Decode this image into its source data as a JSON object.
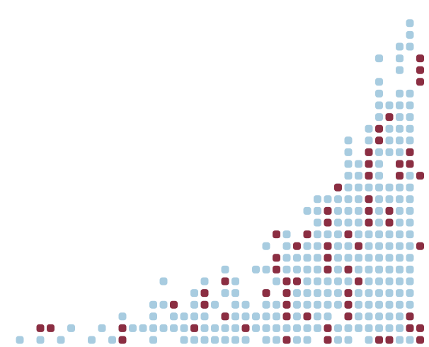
{
  "chart_data": {
    "type": "scatter",
    "title": "",
    "xlabel": "",
    "ylabel": "",
    "grid": false,
    "legend": "none",
    "axes_visible": false,
    "x_range": [
      0,
      39
    ],
    "y_range": [
      0,
      29
    ],
    "series": [
      {
        "color": "#a8cce0",
        "columns": [
          {
            "x": 0,
            "y": [
              0
            ]
          },
          {
            "x": 2,
            "y": [
              0
            ]
          },
          {
            "x": 4,
            "y": [
              0
            ]
          },
          {
            "x": 5,
            "y": [
              1
            ]
          },
          {
            "x": 7,
            "y": [
              0
            ]
          },
          {
            "x": 8,
            "y": [
              1
            ]
          },
          {
            "x": 9,
            "y": [
              0
            ]
          },
          {
            "x": 10,
            "y": [
              1,
              2
            ]
          },
          {
            "x": 11,
            "y": [
              1
            ]
          },
          {
            "x": 12,
            "y": [
              1
            ]
          },
          {
            "x": 13,
            "y": [
              0,
              1,
              2,
              3
            ]
          },
          {
            "x": 14,
            "y": [
              1,
              3,
              5
            ]
          },
          {
            "x": 15,
            "y": [
              1,
              2
            ]
          },
          {
            "x": 16,
            "y": [
              0,
              1,
              2
            ]
          },
          {
            "x": 17,
            "y": [
              0,
              1,
              2,
              3,
              4
            ]
          },
          {
            "x": 18,
            "y": [
              0,
              1,
              2,
              3,
              4,
              5
            ]
          },
          {
            "x": 19,
            "y": [
              0,
              1,
              3
            ]
          },
          {
            "x": 20,
            "y": [
              0,
              1,
              2,
              4,
              5,
              6
            ]
          },
          {
            "x": 21,
            "y": [
              0,
              1,
              2,
              3,
              4,
              5
            ]
          },
          {
            "x": 22,
            "y": [
              0,
              2,
              3
            ]
          },
          {
            "x": 23,
            "y": [
              1,
              2,
              6
            ]
          },
          {
            "x": 24,
            "y": [
              0,
              1,
              2,
              3,
              4,
              6,
              8
            ]
          },
          {
            "x": 25,
            "y": [
              0,
              1,
              2,
              3,
              5
            ]
          },
          {
            "x": 26,
            "y": [
              0,
              1,
              4,
              5,
              6,
              7,
              8,
              9
            ]
          },
          {
            "x": 27,
            "y": [
              0,
              1,
              2,
              3,
              4,
              6,
              7
            ]
          },
          {
            "x": 28,
            "y": [
              0,
              1,
              2,
              3,
              4,
              5,
              6,
              7,
              8,
              11
            ]
          },
          {
            "x": 29,
            "y": [
              1,
              2,
              3,
              4,
              5,
              6,
              7,
              8,
              9,
              10,
              11,
              12
            ]
          },
          {
            "x": 30,
            "y": [
              0,
              2,
              3,
              4,
              5,
              6,
              7,
              8,
              9,
              11,
              12
            ]
          },
          {
            "x": 31,
            "y": [
              0,
              1,
              3,
              4,
              5,
              6,
              7,
              8,
              9,
              10,
              11,
              12,
              13
            ]
          },
          {
            "x": 32,
            "y": [
              0,
              1,
              2,
              3,
              4,
              5,
              6,
              7,
              8,
              9,
              10,
              11,
              12,
              13,
              14,
              15,
              16,
              17
            ]
          },
          {
            "x": 33,
            "y": [
              1,
              2,
              3,
              4,
              6,
              7,
              8,
              9,
              10,
              11,
              12,
              13,
              14,
              15
            ]
          },
          {
            "x": 34,
            "y": [
              0,
              1,
              2,
              3,
              4,
              5,
              6,
              7,
              8,
              9,
              10,
              11,
              12,
              13,
              14,
              15,
              16,
              17,
              18
            ]
          },
          {
            "x": 35,
            "y": [
              0,
              1,
              2,
              3,
              4,
              5,
              6,
              7,
              8,
              9,
              10,
              11,
              12,
              13,
              14,
              15,
              16,
              19,
              20,
              21,
              22,
              24
            ]
          },
          {
            "x": 36,
            "y": [
              1,
              2,
              3,
              4,
              5,
              6,
              7,
              8,
              9,
              10,
              11,
              12,
              13,
              16,
              17,
              18,
              20
            ]
          },
          {
            "x": 37,
            "y": [
              0,
              1,
              2,
              3,
              4,
              5,
              6,
              7,
              8,
              9,
              10,
              11,
              12,
              13,
              15,
              16,
              17,
              18,
              19,
              20,
              21,
              23,
              24,
              25
            ]
          },
          {
            "x": 38,
            "y": [
              0,
              2,
              3,
              4,
              5,
              6,
              7,
              8,
              9,
              10,
              11,
              12,
              13,
              14,
              15,
              16,
              17,
              18,
              19,
              20,
              21,
              25,
              26,
              27,
              29
            ]
          }
        ]
      },
      {
        "color": "#8b2e42",
        "columns": [
          {
            "x": 2,
            "y": [
              1
            ]
          },
          {
            "x": 3,
            "y": [
              1
            ]
          },
          {
            "x": 10,
            "y": [
              0,
              1
            ]
          },
          {
            "x": 15,
            "y": [
              3
            ]
          },
          {
            "x": 17,
            "y": [
              1
            ]
          },
          {
            "x": 18,
            "y": [
              3,
              4
            ]
          },
          {
            "x": 20,
            "y": [
              2,
              5
            ]
          },
          {
            "x": 22,
            "y": [
              1
            ]
          },
          {
            "x": 24,
            "y": [
              4
            ]
          },
          {
            "x": 25,
            "y": [
              6,
              7,
              9
            ]
          },
          {
            "x": 26,
            "y": [
              0,
              2,
              3,
              4,
              5
            ]
          },
          {
            "x": 27,
            "y": [
              5,
              8
            ]
          },
          {
            "x": 28,
            "y": [
              2,
              9
            ]
          },
          {
            "x": 30,
            "y": [
              0,
              1,
              6,
              7,
              8,
              10,
              11
            ]
          },
          {
            "x": 31,
            "y": [
              13
            ]
          },
          {
            "x": 32,
            "y": [
              2,
              3,
              4,
              6,
              9
            ]
          },
          {
            "x": 33,
            "y": [
              5,
              8
            ]
          },
          {
            "x": 34,
            "y": [
              10,
              11,
              12,
              14,
              15,
              16
            ]
          },
          {
            "x": 35,
            "y": [
              0,
              17,
              18
            ]
          },
          {
            "x": 36,
            "y": [
              0,
              10,
              11,
              19
            ]
          },
          {
            "x": 37,
            "y": [
              14,
              15
            ]
          },
          {
            "x": 38,
            "y": [
              1,
              2,
              15,
              16
            ]
          },
          {
            "x": 39,
            "y": [
              0,
              1,
              8,
              14,
              22,
              23,
              24
            ]
          },
          {
            "x": 40,
            "y": [
              2,
              3,
              8,
              13,
              14
            ]
          }
        ]
      }
    ]
  }
}
